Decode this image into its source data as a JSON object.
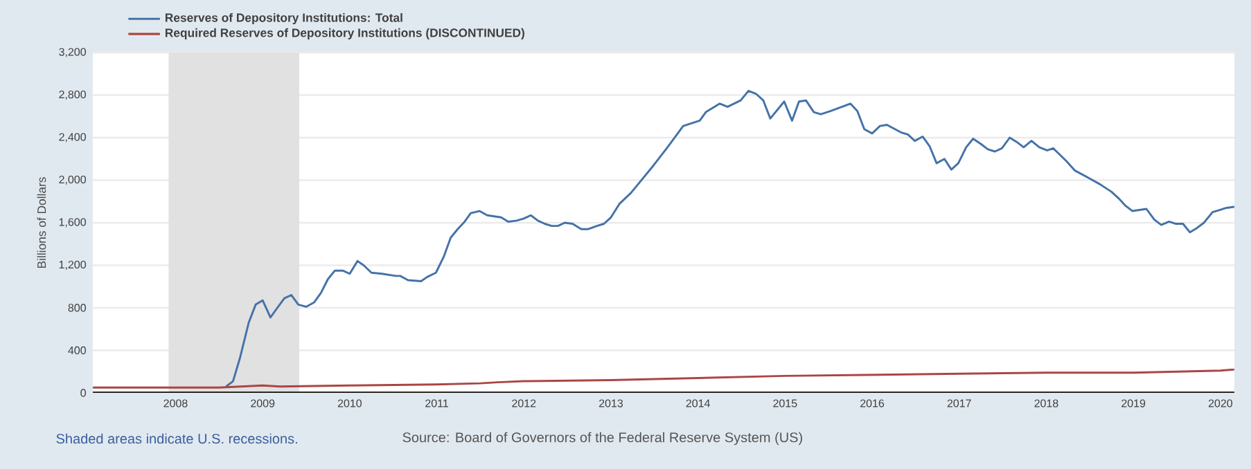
{
  "chart_data": {
    "type": "line",
    "ylabel": "Billions of Dollars",
    "annotations": [
      "Shaded areas indicate U.S. recessions.",
      "Source: Board of Governors of the Federal Reserve System (US)"
    ],
    "xlim": [
      2007.05,
      2020.16
    ],
    "xticks": [
      2008,
      2009,
      2010,
      2011,
      2012,
      2013,
      2014,
      2015,
      2016,
      2017,
      2018,
      2019,
      2020
    ],
    "ylim": [
      0,
      3200
    ],
    "yticks": [
      0,
      {
        "value": 400,
        "label": "400"
      },
      {
        "value": 800,
        "label": "800"
      },
      {
        "value": 1200,
        "label": "1,200"
      },
      {
        "value": 1600,
        "label": "1,600"
      },
      {
        "value": 2000,
        "label": "2,000"
      },
      {
        "value": 2400,
        "label": "2,400"
      },
      {
        "value": 2800,
        "label": "2,800"
      },
      {
        "value": 3200,
        "label": "3,200"
      }
    ],
    "grid": "y",
    "legend": "top left",
    "line_style": "solid",
    "bands": [
      {
        "axis": "x",
        "from": 2007.92,
        "to": 2009.42,
        "color": "#e1e1e1"
      }
    ],
    "series": [
      {
        "name": "Reserves of Depository Institutions: Total",
        "color": "#4572a7",
        "x": [
          2008.58,
          2008.66,
          2008.74,
          2008.84,
          2008.92,
          2009.0,
          2009.09,
          2009.16,
          2009.25,
          2009.33,
          2009.41,
          2009.5,
          2009.59,
          2009.67,
          2009.75,
          2009.83,
          2009.92,
          2010.0,
          2010.09,
          2010.16,
          2010.25,
          2010.37,
          2010.53,
          2010.58,
          2010.67,
          2010.82,
          2010.89,
          2010.99,
          2011.08,
          2011.16,
          2011.24,
          2011.32,
          2011.39,
          2011.49,
          2011.58,
          2011.66,
          2011.74,
          2011.82,
          2011.92,
          2012.0,
          2012.08,
          2012.16,
          2012.24,
          2012.32,
          2012.39,
          2012.47,
          2012.56,
          2012.66,
          2012.74,
          2012.84,
          2012.92,
          2013.0,
          2013.1,
          2013.23,
          2013.49,
          2013.65,
          2013.83,
          2014.02,
          2014.09,
          2014.25,
          2014.34,
          2014.49,
          2014.58,
          2014.67,
          2014.75,
          2014.83,
          2014.99,
          2015.08,
          2015.16,
          2015.24,
          2015.33,
          2015.41,
          2015.52,
          2015.59,
          2015.75,
          2015.83,
          2015.91,
          2016.0,
          2016.09,
          2016.17,
          2016.33,
          2016.41,
          2016.49,
          2016.58,
          2016.66,
          2016.74,
          2016.83,
          2016.91,
          2016.99,
          2017.08,
          2017.16,
          2017.25,
          2017.33,
          2017.41,
          2017.49,
          2017.58,
          2017.66,
          2017.74,
          2017.83,
          2017.92,
          2018.01,
          2018.08,
          2018.23,
          2018.33,
          2018.49,
          2018.62,
          2018.75,
          2018.83,
          2018.91,
          2018.99,
          2019.15,
          2019.24,
          2019.32,
          2019.41,
          2019.49,
          2019.57,
          2019.65,
          2019.73,
          2019.81,
          2019.91,
          2019.99,
          2020.07,
          2020.16
        ],
        "values": [
          60,
          110,
          330,
          660,
          830,
          870,
          710,
          790,
          890,
          920,
          830,
          810,
          850,
          940,
          1070,
          1150,
          1150,
          1120,
          1240,
          1200,
          1130,
          1120,
          1100,
          1100,
          1060,
          1050,
          1090,
          1130,
          1280,
          1460,
          1540,
          1610,
          1690,
          1710,
          1670,
          1660,
          1650,
          1610,
          1620,
          1640,
          1670,
          1620,
          1590,
          1570,
          1570,
          1600,
          1590,
          1540,
          1540,
          1570,
          1590,
          1650,
          1780,
          1880,
          2140,
          2310,
          2510,
          2560,
          2640,
          2720,
          2690,
          2750,
          2840,
          2810,
          2750,
          2580,
          2740,
          2560,
          2740,
          2750,
          2640,
          2620,
          2650,
          2670,
          2720,
          2650,
          2480,
          2440,
          2510,
          2520,
          2450,
          2430,
          2370,
          2410,
          2320,
          2160,
          2200,
          2100,
          2160,
          2310,
          2390,
          2340,
          2290,
          2270,
          2300,
          2400,
          2360,
          2310,
          2370,
          2310,
          2280,
          2300,
          2180,
          2090,
          2020,
          1960,
          1890,
          1830,
          1760,
          1710,
          1730,
          1630,
          1580,
          1610,
          1590,
          1590,
          1510,
          1550,
          1600,
          1700,
          1720,
          1740,
          1750
        ]
      },
      {
        "name": "Required Reserves of Depository Institutions (DISCONTINUED)",
        "color": "#aa4643",
        "x": [
          2007.05,
          2008.0,
          2008.5,
          2009.0,
          2009.2,
          2010.0,
          2011.0,
          2011.5,
          2011.7,
          2012.0,
          2013.0,
          2014.0,
          2015.0,
          2016.0,
          2017.0,
          2018.0,
          2019.0,
          2020.0,
          2020.16
        ],
        "values": [
          50,
          50,
          50,
          70,
          60,
          70,
          80,
          90,
          100,
          110,
          120,
          140,
          160,
          170,
          180,
          190,
          190,
          210,
          220
        ]
      }
    ]
  }
}
